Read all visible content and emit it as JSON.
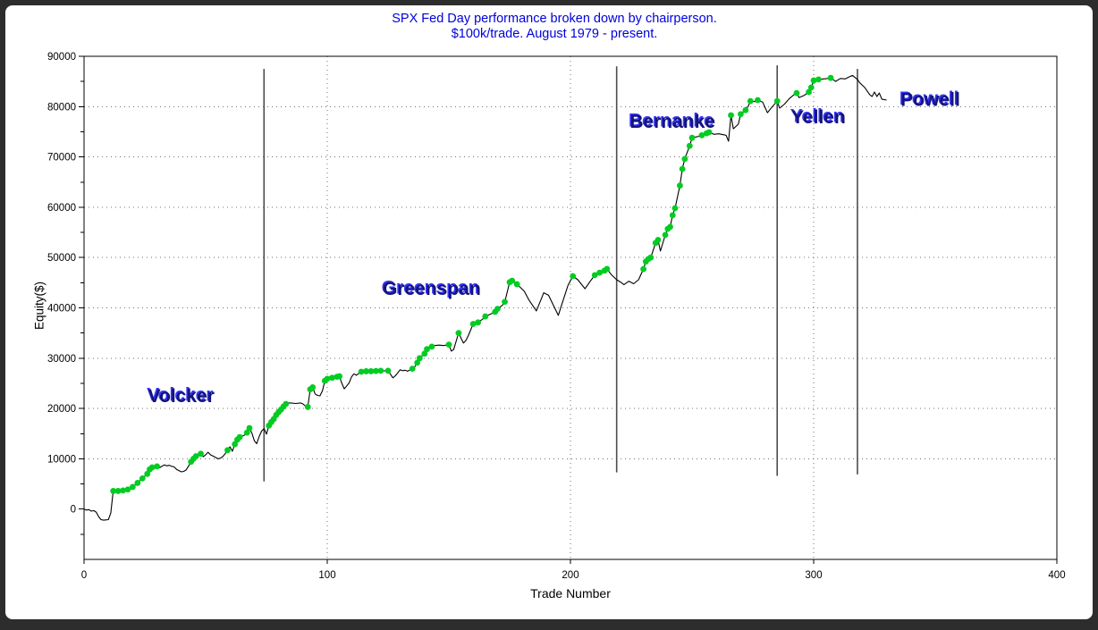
{
  "title": {
    "line1": "SPX Fed Day performance broken down by chairperson.",
    "line2": "$100k/trade. August 1979 - present.",
    "color": "#0000dd"
  },
  "colors": {
    "frame": "#2d2d2d",
    "background": "#ffffff",
    "curve": "#000000",
    "win_dot": "#00cc22",
    "grid": "#707070",
    "separator": "#4d4d4d",
    "annotation_fill": "#14147a",
    "annotation_shadow": "#3535ff",
    "axis": "#000000"
  },
  "chart_data": {
    "type": "line",
    "title": "SPX Fed Day performance broken down by chairperson. $100k/trade. August 1979 - present.",
    "xlabel": "Trade Number",
    "ylabel": "Equity($)",
    "xlim": [
      0,
      400
    ],
    "ylim": [
      -10000,
      90000
    ],
    "x_ticks": [
      0,
      100,
      200,
      300,
      400
    ],
    "x_grid": [
      100,
      200,
      300
    ],
    "y_ticks": [
      0,
      10000,
      20000,
      30000,
      40000,
      50000,
      60000,
      70000,
      80000,
      90000
    ],
    "y_grid": [
      10000,
      20000,
      30000,
      40000,
      50000,
      60000,
      70000,
      80000
    ],
    "y_minor_step": 5000,
    "grid_style": "dotted",
    "legend": null,
    "annotations": [
      {
        "label": "Volcker",
        "t": 40,
        "equity": 22500
      },
      {
        "label": "Greenspan",
        "t": 143,
        "equity": 43800
      },
      {
        "label": "Bernanke",
        "t": 242,
        "equity": 77000
      },
      {
        "label": "Yellen",
        "t": 302,
        "equity": 77900
      },
      {
        "label": "Powell",
        "t": 348,
        "equity": 81400
      }
    ],
    "separators": [
      {
        "name": "volcker-greenspan",
        "t": 74,
        "top": 87500,
        "bottom": 5500
      },
      {
        "name": "greenspan-bernanke",
        "t": 219,
        "top": 88000,
        "bottom": 7300
      },
      {
        "name": "bernanke-yellen",
        "t": 285,
        "top": 88200,
        "bottom": 6600
      },
      {
        "name": "yellen-powell",
        "t": 318,
        "top": 87500,
        "bottom": 6900
      }
    ],
    "series": [
      {
        "name": "equity-curve",
        "points": [
          [
            0,
            0,
            0
          ],
          [
            1,
            -200,
            0
          ],
          [
            2,
            -100,
            0
          ],
          [
            3,
            -400,
            0
          ],
          [
            4,
            -300,
            0
          ],
          [
            5,
            -600,
            0
          ],
          [
            6,
            -1500,
            0
          ],
          [
            7,
            -2100,
            0
          ],
          [
            8,
            -2200,
            0
          ],
          [
            9,
            -2150,
            0
          ],
          [
            10,
            -2100,
            0
          ],
          [
            11,
            -800,
            0
          ],
          [
            12,
            3600,
            1
          ],
          [
            13,
            3550,
            0
          ],
          [
            14,
            3600,
            1
          ],
          [
            15,
            3650,
            0
          ],
          [
            16,
            3700,
            1
          ],
          [
            18,
            3900,
            1
          ],
          [
            19,
            4100,
            0
          ],
          [
            20,
            4400,
            1
          ],
          [
            22,
            5200,
            1
          ],
          [
            24,
            6100,
            1
          ],
          [
            26,
            7000,
            1
          ],
          [
            27,
            7900,
            1
          ],
          [
            28,
            8300,
            1
          ],
          [
            30,
            8500,
            1
          ],
          [
            31,
            8200,
            0
          ],
          [
            33,
            8800,
            0
          ],
          [
            34,
            8600,
            0
          ],
          [
            35,
            8700,
            0
          ],
          [
            36,
            8500,
            0
          ],
          [
            37,
            8400,
            0
          ],
          [
            38,
            7900,
            0
          ],
          [
            40,
            7400,
            0
          ],
          [
            41,
            7500,
            0
          ],
          [
            42,
            7800,
            0
          ],
          [
            43,
            8600,
            0
          ],
          [
            44,
            9400,
            1
          ],
          [
            45,
            10000,
            1
          ],
          [
            46,
            10500,
            1
          ],
          [
            48,
            11000,
            1
          ],
          [
            49,
            10400,
            0
          ],
          [
            50,
            10800,
            0
          ],
          [
            51,
            11300,
            0
          ],
          [
            52,
            10800,
            0
          ],
          [
            54,
            10300,
            0
          ],
          [
            55,
            10000,
            0
          ],
          [
            56,
            10100,
            0
          ],
          [
            57,
            10400,
            0
          ],
          [
            58,
            11000,
            0
          ],
          [
            59,
            11700,
            1
          ],
          [
            60,
            12400,
            0
          ],
          [
            61,
            11500,
            0
          ],
          [
            62,
            12900,
            1
          ],
          [
            63,
            13800,
            1
          ],
          [
            64,
            14300,
            1
          ],
          [
            65,
            14500,
            0
          ],
          [
            66,
            14700,
            0
          ],
          [
            67,
            15200,
            1
          ],
          [
            68,
            16100,
            1
          ],
          [
            69,
            15100,
            0
          ],
          [
            70,
            13600,
            0
          ],
          [
            71,
            13000,
            0
          ],
          [
            72,
            14400,
            0
          ],
          [
            73,
            15500,
            0
          ],
          [
            74,
            16000,
            0
          ],
          [
            75,
            14900,
            0
          ],
          [
            76,
            16600,
            1
          ],
          [
            77,
            17300,
            1
          ],
          [
            78,
            17900,
            1
          ],
          [
            79,
            18700,
            1
          ],
          [
            80,
            19300,
            1
          ],
          [
            81,
            19800,
            1
          ],
          [
            82,
            20400,
            1
          ],
          [
            83,
            20900,
            1
          ],
          [
            84,
            21100,
            0
          ],
          [
            85,
            21100,
            0
          ],
          [
            87,
            21000,
            0
          ],
          [
            89,
            21100,
            0
          ],
          [
            90,
            20900,
            0
          ],
          [
            91,
            20500,
            0
          ],
          [
            92,
            20300,
            1
          ],
          [
            93,
            23800,
            1
          ],
          [
            94,
            24200,
            1
          ],
          [
            95,
            22900,
            0
          ],
          [
            96,
            22600,
            0
          ],
          [
            97,
            22500,
            0
          ],
          [
            98,
            23500,
            0
          ],
          [
            99,
            25500,
            1
          ],
          [
            100,
            25900,
            1
          ],
          [
            102,
            26100,
            1
          ],
          [
            104,
            26300,
            1
          ],
          [
            105,
            26400,
            1
          ],
          [
            106,
            25000,
            0
          ],
          [
            107,
            23900,
            0
          ],
          [
            108,
            24500,
            0
          ],
          [
            109,
            25100,
            0
          ],
          [
            110,
            26300,
            0
          ],
          [
            111,
            26900,
            0
          ],
          [
            112,
            26600,
            0
          ],
          [
            113,
            27000,
            0
          ],
          [
            114,
            27300,
            1
          ],
          [
            116,
            27400,
            1
          ],
          [
            118,
            27400,
            1
          ],
          [
            120,
            27450,
            1
          ],
          [
            122,
            27500,
            1
          ],
          [
            125,
            27500,
            1
          ],
          [
            127,
            26100,
            0
          ],
          [
            128,
            26500,
            0
          ],
          [
            130,
            27700,
            0
          ],
          [
            131,
            27500,
            0
          ],
          [
            132,
            27600,
            0
          ],
          [
            133,
            27400,
            0
          ],
          [
            135,
            27900,
            1
          ],
          [
            136,
            28300,
            0
          ],
          [
            137,
            29100,
            1
          ],
          [
            138,
            30000,
            1
          ],
          [
            139,
            30500,
            0
          ],
          [
            140,
            30900,
            1
          ],
          [
            141,
            31800,
            1
          ],
          [
            143,
            32300,
            1
          ],
          [
            144,
            32500,
            0
          ],
          [
            146,
            32600,
            0
          ],
          [
            148,
            32500,
            0
          ],
          [
            150,
            32700,
            1
          ],
          [
            151,
            31400,
            0
          ],
          [
            152,
            31700,
            0
          ],
          [
            154,
            35000,
            1
          ],
          [
            156,
            33000,
            0
          ],
          [
            157,
            33500,
            0
          ],
          [
            158,
            34500,
            0
          ],
          [
            160,
            36800,
            1
          ],
          [
            162,
            37100,
            1
          ],
          [
            164,
            37800,
            0
          ],
          [
            165,
            38300,
            1
          ],
          [
            167,
            38700,
            0
          ],
          [
            169,
            39200,
            1
          ],
          [
            170,
            39800,
            1
          ],
          [
            172,
            40500,
            0
          ],
          [
            173,
            41200,
            1
          ],
          [
            175,
            45100,
            1
          ],
          [
            176,
            45400,
            1
          ],
          [
            178,
            44700,
            1
          ],
          [
            181,
            43300,
            0
          ],
          [
            183,
            41500,
            0
          ],
          [
            186,
            39400,
            0
          ],
          [
            188,
            41800,
            0
          ],
          [
            189,
            43000,
            0
          ],
          [
            191,
            42500,
            0
          ],
          [
            193,
            40500,
            0
          ],
          [
            195,
            38500,
            0
          ],
          [
            197,
            41500,
            0
          ],
          [
            199,
            44500,
            0
          ],
          [
            201,
            46300,
            1
          ],
          [
            203,
            45600,
            0
          ],
          [
            206,
            43800,
            0
          ],
          [
            208,
            45200,
            0
          ],
          [
            210,
            46500,
            1
          ],
          [
            212,
            47000,
            1
          ],
          [
            214,
            47400,
            1
          ],
          [
            215,
            47750,
            1
          ],
          [
            217,
            46500,
            0
          ],
          [
            219,
            45600,
            0
          ],
          [
            221,
            45000,
            0
          ],
          [
            222,
            44600,
            0
          ],
          [
            224,
            45300,
            0
          ],
          [
            226,
            44800,
            0
          ],
          [
            228,
            45600,
            0
          ],
          [
            230,
            47700,
            1
          ],
          [
            231,
            49200,
            1
          ],
          [
            232,
            49700,
            1
          ],
          [
            233,
            50000,
            1
          ],
          [
            235,
            52900,
            1
          ],
          [
            236,
            53500,
            1
          ],
          [
            237,
            51300,
            0
          ],
          [
            239,
            54500,
            1
          ],
          [
            240,
            55700,
            1
          ],
          [
            241,
            56100,
            1
          ],
          [
            242,
            58400,
            1
          ],
          [
            243,
            59800,
            1
          ],
          [
            245,
            64300,
            1
          ],
          [
            246,
            67600,
            1
          ],
          [
            247,
            69600,
            1
          ],
          [
            249,
            72200,
            1
          ],
          [
            250,
            73800,
            1
          ],
          [
            252,
            74000,
            0
          ],
          [
            254,
            74300,
            1
          ],
          [
            256,
            74700,
            1
          ],
          [
            257,
            74900,
            1
          ],
          [
            259,
            74500,
            0
          ],
          [
            261,
            74600,
            0
          ],
          [
            263,
            74400,
            0
          ],
          [
            264,
            74300,
            0
          ],
          [
            265,
            73100,
            0
          ],
          [
            266,
            78280,
            1
          ],
          [
            267,
            75600,
            0
          ],
          [
            269,
            76500,
            0
          ],
          [
            270,
            78500,
            1
          ],
          [
            272,
            79300,
            1
          ],
          [
            273,
            80000,
            0
          ],
          [
            274,
            81100,
            1
          ],
          [
            276,
            81000,
            0
          ],
          [
            277,
            81300,
            1
          ],
          [
            279,
            80900,
            0
          ],
          [
            281,
            78800,
            0
          ],
          [
            283,
            80000,
            0
          ],
          [
            285,
            81100,
            1
          ],
          [
            286,
            79700,
            0
          ],
          [
            288,
            80500,
            0
          ],
          [
            290,
            81600,
            0
          ],
          [
            292,
            82400,
            0
          ],
          [
            293,
            82700,
            1
          ],
          [
            294,
            81800,
            0
          ],
          [
            296,
            82200,
            0
          ],
          [
            298,
            82900,
            1
          ],
          [
            299,
            83800,
            1
          ],
          [
            300,
            85200,
            1
          ],
          [
            302,
            85400,
            1
          ],
          [
            304,
            85500,
            0
          ],
          [
            306,
            85600,
            0
          ],
          [
            307,
            85700,
            1
          ],
          [
            309,
            85000,
            0
          ],
          [
            311,
            85600,
            0
          ],
          [
            313,
            85500,
            0
          ],
          [
            315,
            86000,
            0
          ],
          [
            316,
            86200,
            0
          ],
          [
            318,
            85400,
            0
          ],
          [
            319,
            84700,
            0
          ],
          [
            321,
            83800,
            0
          ],
          [
            323,
            82400,
            0
          ],
          [
            324,
            82000,
            0
          ],
          [
            325,
            82900,
            0
          ],
          [
            326,
            82000,
            0
          ],
          [
            327,
            82700,
            0
          ],
          [
            328,
            81500,
            0
          ],
          [
            330,
            81300,
            0
          ]
        ]
      }
    ]
  }
}
